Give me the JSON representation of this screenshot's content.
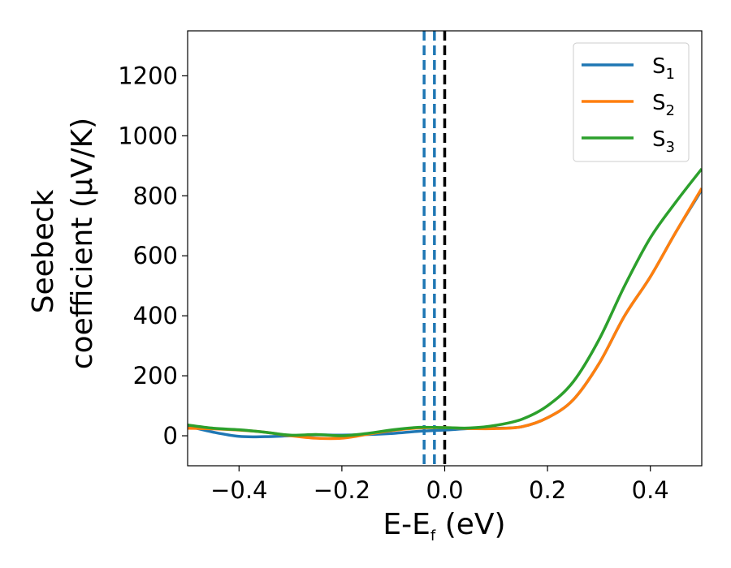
{
  "chart_data": {
    "type": "line",
    "xlabel": {
      "main": "E-E",
      "sub": "f",
      "unit": " (eV)"
    },
    "ylabel": {
      "line1": "Seebeck",
      "line2": "coefficient  (μV/K)"
    },
    "xlim": [
      -0.5,
      0.5
    ],
    "ylim": [
      -100,
      1350
    ],
    "xticks": [
      -0.4,
      -0.2,
      0.0,
      0.2,
      0.4
    ],
    "xtick_labels": [
      "−0.4",
      "−0.2",
      "0.0",
      "0.2",
      "0.4"
    ],
    "yticks": [
      0,
      200,
      400,
      600,
      800,
      1000,
      1200
    ],
    "ytick_labels": [
      "0",
      "200",
      "400",
      "600",
      "800",
      "1000",
      "1200"
    ],
    "grid": false,
    "legend_position": "top-right",
    "reference_lines": [
      {
        "x": -0.04,
        "color": "#1f77b4",
        "style": "dashed"
      },
      {
        "x": -0.02,
        "color": "#1f77b4",
        "style": "dashed"
      },
      {
        "x": 0.0,
        "color": "#000000",
        "style": "dashed"
      }
    ],
    "series": [
      {
        "name": "S",
        "sub": "1",
        "color": "#1f77b4",
        "x": [
          -0.5,
          -0.45,
          -0.4,
          -0.35,
          -0.3,
          -0.25,
          -0.2,
          -0.15,
          -0.1,
          -0.05,
          0.0,
          0.05,
          0.1,
          0.15,
          0.2,
          0.25,
          0.3,
          0.35,
          0.4,
          0.45,
          0.5
        ],
        "y": [
          32,
          12,
          -2,
          -3,
          0,
          3,
          2,
          4,
          8,
          15,
          19,
          24,
          25,
          30,
          60,
          120,
          240,
          400,
          530,
          680,
          820
        ]
      },
      {
        "name": "S",
        "sub": "2",
        "color": "#ff7f0e",
        "x": [
          -0.5,
          -0.45,
          -0.4,
          -0.35,
          -0.3,
          -0.25,
          -0.2,
          -0.15,
          -0.1,
          -0.05,
          0.0,
          0.05,
          0.1,
          0.15,
          0.2,
          0.25,
          0.3,
          0.35,
          0.4,
          0.45,
          0.5
        ],
        "y": [
          25,
          23,
          19,
          12,
          0,
          -8,
          -8,
          5,
          18,
          26,
          27,
          24,
          24,
          30,
          60,
          120,
          240,
          400,
          530,
          680,
          825
        ]
      },
      {
        "name": "S",
        "sub": "3",
        "color": "#2ca02c",
        "x": [
          -0.5,
          -0.45,
          -0.4,
          -0.35,
          -0.3,
          -0.25,
          -0.2,
          -0.15,
          -0.1,
          -0.05,
          0.0,
          0.05,
          0.1,
          0.15,
          0.2,
          0.25,
          0.3,
          0.35,
          0.4,
          0.45,
          0.5
        ],
        "y": [
          36,
          25,
          20,
          12,
          2,
          4,
          0,
          8,
          20,
          28,
          27,
          26,
          35,
          55,
          100,
          180,
          320,
          500,
          660,
          780,
          890
        ]
      }
    ]
  }
}
